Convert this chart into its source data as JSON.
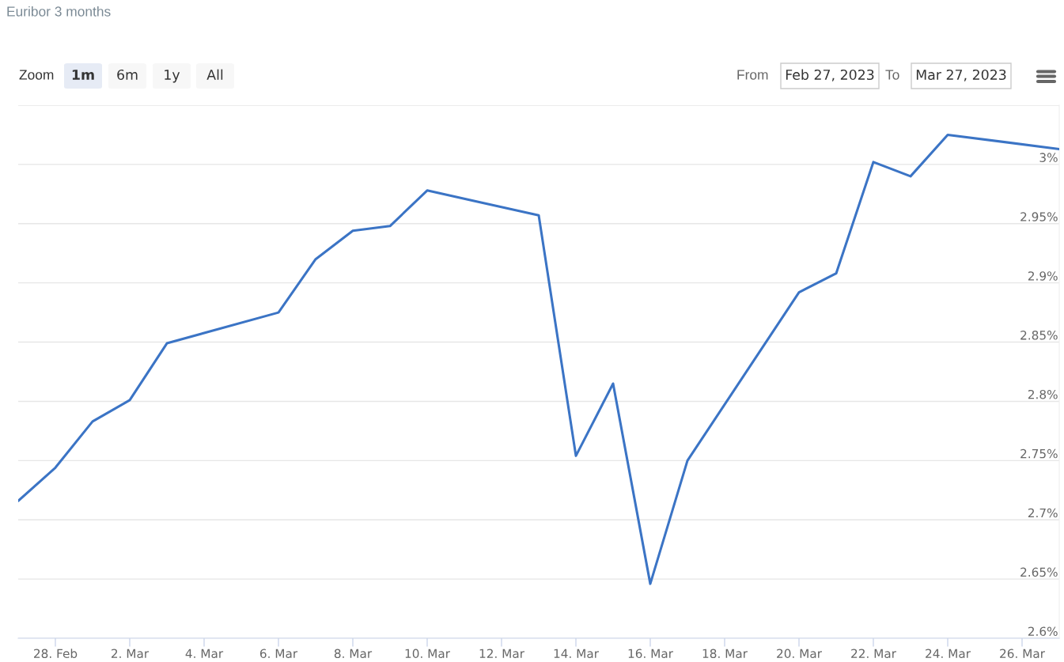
{
  "chart_data": {
    "type": "line",
    "title": "Euribor 3 months",
    "annotations": [
      "Zoom",
      "1m",
      "6m",
      "1y",
      "All",
      "From",
      "Feb 27, 2023",
      "To",
      "Mar 27, 2023"
    ],
    "x": [
      "2023-02-27",
      "2023-02-28",
      "2023-03-01",
      "2023-03-02",
      "2023-03-03",
      "2023-03-06",
      "2023-03-07",
      "2023-03-08",
      "2023-03-09",
      "2023-03-10",
      "2023-03-13",
      "2023-03-14",
      "2023-03-15",
      "2023-03-16",
      "2023-03-17",
      "2023-03-20",
      "2023-03-21",
      "2023-03-22",
      "2023-03-23",
      "2023-03-24",
      "2023-03-27"
    ],
    "series": [
      {
        "color": "#3b74c5",
        "values": [
          2.716,
          2.744,
          2.783,
          2.801,
          2.849,
          2.875,
          2.92,
          2.944,
          2.948,
          2.978,
          2.957,
          2.754,
          2.815,
          2.646,
          2.75,
          2.892,
          2.908,
          3.002,
          2.99,
          3.025,
          3.013
        ]
      }
    ],
    "xlim": [
      "2023-02-27",
      "2023-03-27"
    ],
    "xticks": [
      {
        "value": "2023-02-28",
        "label": "28. Feb"
      },
      {
        "value": "2023-03-02",
        "label": "2. Mar"
      },
      {
        "value": "2023-03-04",
        "label": "4. Mar"
      },
      {
        "value": "2023-03-06",
        "label": "6. Mar"
      },
      {
        "value": "2023-03-08",
        "label": "8. Mar"
      },
      {
        "value": "2023-03-10",
        "label": "10. Mar"
      },
      {
        "value": "2023-03-12",
        "label": "12. Mar"
      },
      {
        "value": "2023-03-14",
        "label": "14. Mar"
      },
      {
        "value": "2023-03-16",
        "label": "16. Mar"
      },
      {
        "value": "2023-03-18",
        "label": "18. Mar"
      },
      {
        "value": "2023-03-20",
        "label": "20. Mar"
      },
      {
        "value": "2023-03-22",
        "label": "22. Mar"
      },
      {
        "value": "2023-03-24",
        "label": "24. Mar"
      },
      {
        "value": "2023-03-26",
        "label": "26. Mar"
      }
    ],
    "ylim": [
      2.6,
      3.05
    ],
    "yticks": [
      {
        "value": 2.6,
        "label": "2.6%"
      },
      {
        "value": 2.65,
        "label": "2.65%"
      },
      {
        "value": 2.7,
        "label": "2.7%"
      },
      {
        "value": 2.75,
        "label": "2.75%"
      },
      {
        "value": 2.8,
        "label": "2.8%"
      },
      {
        "value": 2.85,
        "label": "2.85%"
      },
      {
        "value": 2.9,
        "label": "2.9%"
      },
      {
        "value": 2.95,
        "label": "2.95%"
      },
      {
        "value": 3,
        "label": "3%"
      },
      {
        "value": 3.05,
        "label": null
      }
    ],
    "grid": "y"
  }
}
